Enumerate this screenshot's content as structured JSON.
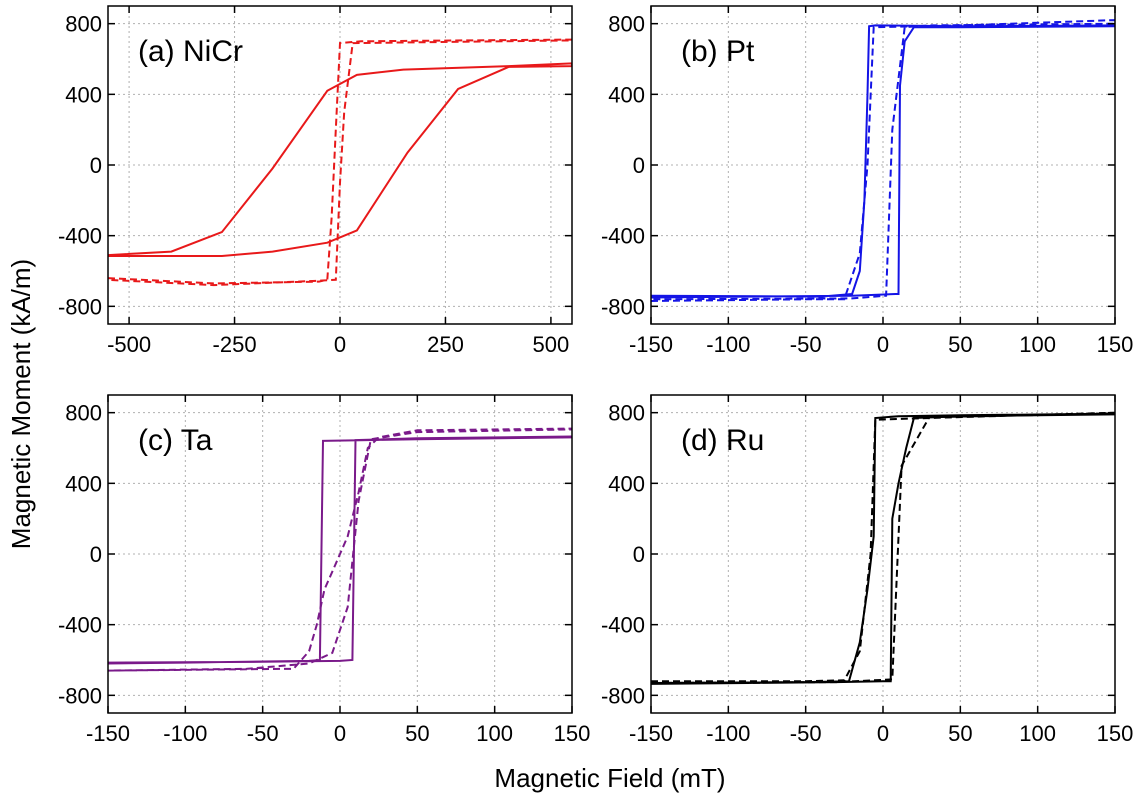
{
  "figure": {
    "xlabel": "Magnetic Field (mT)",
    "ylabel": "Magnetic Moment (kA/m)"
  },
  "chart_data": [
    {
      "type": "line",
      "title": "(a) NiCr",
      "xlim": [
        -550,
        550
      ],
      "ylim": [
        -900,
        900
      ],
      "xticks": [
        -500,
        -250,
        0,
        250,
        500
      ],
      "yticks": [
        -800,
        -400,
        0,
        400,
        800
      ],
      "grid": true,
      "series": [
        {
          "color": "#e8191a",
          "dash": "solid",
          "points": [
            [
              -550,
              -510
            ],
            [
              -400,
              -490
            ],
            [
              -280,
              -380
            ],
            [
              -160,
              -20
            ],
            [
              -30,
              420
            ],
            [
              40,
              510
            ],
            [
              150,
              540
            ],
            [
              400,
              560
            ],
            [
              550,
              575
            ],
            [
              550,
              560
            ],
            [
              400,
              555
            ],
            [
              280,
              430
            ],
            [
              160,
              70
            ],
            [
              40,
              -370
            ],
            [
              -30,
              -440
            ],
            [
              -160,
              -490
            ],
            [
              -280,
              -515
            ],
            [
              -550,
              -515
            ]
          ]
        },
        {
          "color": "#e8191a",
          "dash": "dashed",
          "points": [
            [
              -550,
              -640
            ],
            [
              -300,
              -670
            ],
            [
              -50,
              -660
            ],
            [
              -30,
              -650
            ],
            [
              -20,
              -300
            ],
            [
              -10,
              200
            ],
            [
              0,
              690
            ],
            [
              50,
              700
            ],
            [
              300,
              705
            ],
            [
              550,
              710
            ],
            [
              550,
              705
            ],
            [
              30,
              690
            ],
            [
              10,
              300
            ],
            [
              0,
              -100
            ],
            [
              -10,
              -650
            ],
            [
              -50,
              -655
            ],
            [
              -300,
              -680
            ],
            [
              -550,
              -650
            ]
          ]
        }
      ]
    },
    {
      "type": "line",
      "title": "(b) Pt",
      "xlim": [
        -150,
        150
      ],
      "ylim": [
        -900,
        900
      ],
      "xticks": [
        -150,
        -100,
        -50,
        0,
        50,
        100,
        150
      ],
      "yticks": [
        -800,
        -400,
        0,
        400,
        800
      ],
      "grid": true,
      "series": [
        {
          "color": "#1414e6",
          "dash": "solid",
          "points": [
            [
              -150,
              -740
            ],
            [
              -40,
              -745
            ],
            [
              -20,
              -730
            ],
            [
              -15,
              -600
            ],
            [
              -12,
              -200
            ],
            [
              -10,
              400
            ],
            [
              -9,
              785
            ],
            [
              -5,
              790
            ],
            [
              50,
              785
            ],
            [
              150,
              790
            ],
            [
              150,
              785
            ],
            [
              50,
              780
            ],
            [
              20,
              780
            ],
            [
              14,
              700
            ],
            [
              11,
              450
            ],
            [
              10,
              -730
            ],
            [
              8,
              -730
            ],
            [
              -20,
              -740
            ],
            [
              -150,
              -750
            ]
          ]
        },
        {
          "color": "#1414e6",
          "dash": "dashed",
          "points": [
            [
              -150,
              -770
            ],
            [
              -50,
              -760
            ],
            [
              -25,
              -760
            ],
            [
              -15,
              -500
            ],
            [
              -10,
              0
            ],
            [
              -6,
              780
            ],
            [
              50,
              790
            ],
            [
              150,
              820
            ],
            [
              150,
              800
            ],
            [
              30,
              790
            ],
            [
              14,
              780
            ],
            [
              6,
              200
            ],
            [
              2,
              -740
            ],
            [
              -20,
              -755
            ],
            [
              -150,
              -760
            ]
          ]
        }
      ]
    },
    {
      "type": "line",
      "title": "(c) Ta",
      "xlim": [
        -150,
        150
      ],
      "ylim": [
        -900,
        900
      ],
      "xticks": [
        -150,
        -100,
        -50,
        0,
        50,
        100,
        150
      ],
      "yticks": [
        -800,
        -400,
        0,
        400,
        800
      ],
      "grid": true,
      "series": [
        {
          "color": "#7a1a8a",
          "dash": "solid",
          "points": [
            [
              -150,
              -620
            ],
            [
              -100,
              -615
            ],
            [
              -20,
              -605
            ],
            [
              -13,
              -600
            ],
            [
              -11,
              640
            ],
            [
              50,
              650
            ],
            [
              150,
              660
            ],
            [
              150,
              665
            ],
            [
              50,
              655
            ],
            [
              10,
              645
            ],
            [
              8,
              -600
            ],
            [
              0,
              -605
            ],
            [
              -50,
              -610
            ],
            [
              -150,
              -615
            ]
          ]
        },
        {
          "color": "#7a1a8a",
          "dash": "dashed",
          "points": [
            [
              -150,
              -660
            ],
            [
              -30,
              -650
            ],
            [
              -20,
              -550
            ],
            [
              -15,
              -400
            ],
            [
              -10,
              -200
            ],
            [
              -5,
              -100
            ],
            [
              5,
              100
            ],
            [
              12,
              350
            ],
            [
              18,
              600
            ],
            [
              25,
              660
            ],
            [
              50,
              700
            ],
            [
              150,
              710
            ],
            [
              150,
              705
            ],
            [
              50,
              690
            ],
            [
              20,
              650
            ],
            [
              12,
              300
            ],
            [
              5,
              -300
            ],
            [
              -5,
              -560
            ],
            [
              -20,
              -620
            ],
            [
              -60,
              -650
            ],
            [
              -150,
              -660
            ]
          ]
        }
      ]
    },
    {
      "type": "line",
      "title": "(d) Ru",
      "xlim": [
        -150,
        150
      ],
      "ylim": [
        -900,
        900
      ],
      "xticks": [
        -150,
        -100,
        -50,
        0,
        50,
        100,
        150
      ],
      "yticks": [
        -800,
        -400,
        0,
        400,
        800
      ],
      "grid": true,
      "series": [
        {
          "color": "#000000",
          "dash": "solid",
          "points": [
            [
              -150,
              -730
            ],
            [
              -50,
              -725
            ],
            [
              -22,
              -720
            ],
            [
              -15,
              -500
            ],
            [
              -10,
              -200
            ],
            [
              -6,
              100
            ],
            [
              -5,
              770
            ],
            [
              10,
              780
            ],
            [
              50,
              785
            ],
            [
              150,
              795
            ],
            [
              150,
              790
            ],
            [
              50,
              780
            ],
            [
              20,
              770
            ],
            [
              15,
              600
            ],
            [
              10,
              400
            ],
            [
              6,
              200
            ],
            [
              5,
              -720
            ],
            [
              0,
              -720
            ],
            [
              -30,
              -725
            ],
            [
              -150,
              -735
            ]
          ]
        },
        {
          "color": "#000000",
          "dash": "dashed",
          "points": [
            [
              -150,
              -720
            ],
            [
              -50,
              -720
            ],
            [
              -25,
              -715
            ],
            [
              -15,
              -550
            ],
            [
              -8,
              0
            ],
            [
              -5,
              760
            ],
            [
              30,
              770
            ],
            [
              150,
              800
            ],
            [
              150,
              795
            ],
            [
              30,
              775
            ],
            [
              12,
              500
            ],
            [
              6,
              -710
            ],
            [
              -30,
              -725
            ],
            [
              -150,
              -730
            ]
          ]
        }
      ]
    }
  ]
}
